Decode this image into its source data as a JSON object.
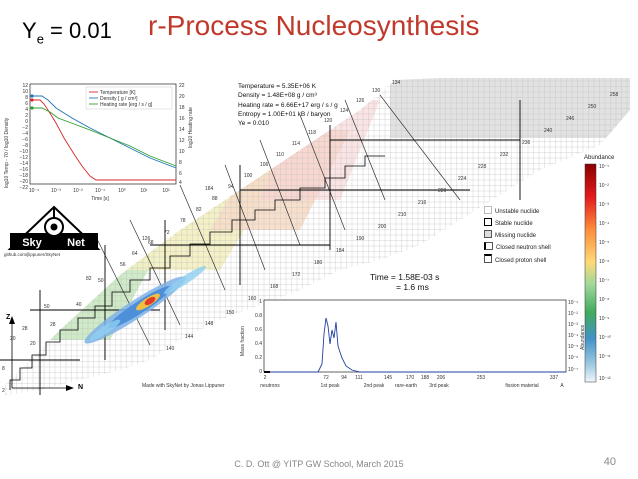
{
  "slide": {
    "ye_label": "Y",
    "ye_sub": "e",
    "ye_value": " = 0.01",
    "title": "r-Process Nucleosynthesis",
    "footer": "C. D. Ott @ YITP GW School, March 2015",
    "page_number": "40"
  },
  "thermo_plot": {
    "legend": [
      "Temperature [K]",
      "Density [ g / cm³]",
      "Heating rate [erg / s / g]"
    ],
    "ylabel_left": "log10 Temp - 70 / log10 Density",
    "ylabel_right": "log10 Heating rate",
    "xlabel": "Time [s]",
    "left_ticks": [
      "12",
      "10",
      "8",
      "6",
      "4",
      "2",
      "0",
      "−2",
      "−4",
      "−6",
      "−8",
      "−10",
      "−12",
      "−14",
      "−16",
      "−18",
      "−20",
      "−22"
    ],
    "right_ticks": [
      "22",
      "20",
      "18",
      "16",
      "14",
      "12",
      "10",
      "8",
      "6",
      "4"
    ],
    "x_ticks": [
      "10⁻⁴",
      "10⁻³",
      "10⁻²",
      "10⁻¹",
      "10⁰",
      "10¹",
      "10²"
    ],
    "colors": {
      "temperature": "#d62728",
      "density": "#1f77b4",
      "heating": "#2ca02c"
    }
  },
  "skynet_logo": {
    "left": "Sky",
    "right": "Net",
    "url": "github.com/jlippuner/SkyNet"
  },
  "info_box": {
    "temperature": "Temperature = 5.35E+06 K",
    "density": "Density = 1.48E+08 g / cm³",
    "heating": "Heating rate = 6.66E+17 erg / s / g",
    "entropy": "Entropy = 1.00E+01 kB / baryon",
    "ye": "Ye = 0.010"
  },
  "nuclide_legend": {
    "unstable": "Unstable nuclide",
    "stable": "Stable nuclide",
    "missing": "Missing nuclide",
    "closed_neutron": "Closed neutron shell",
    "closed_proton": "Closed proton shell"
  },
  "time_readout": {
    "time_s": "Time = 1.58E-03 s",
    "time_ms": "= 1.6 ms"
  },
  "chart_labels": {
    "Z": "Z",
    "N": "N",
    "made_with": "Made with SkyNet by Jonas Lippuner"
  },
  "abundance_bar": {
    "title": "Abundance",
    "ticks": [
      "10⁻¹",
      "10⁻²",
      "10⁻³",
      "10⁻⁴",
      "10⁻⁵",
      "10⁻⁶",
      "10⁻⁷",
      "10⁻⁸",
      "10⁻⁹",
      "10⁻¹⁰",
      "10⁻¹¹",
      "10⁻¹²"
    ],
    "side_label": "Abundance"
  },
  "mass_fraction_plot": {
    "ylabel": "Mass fraction",
    "y_ticks": [
      "1",
      "0.8",
      "0.6",
      "0.4",
      "0.2",
      "0"
    ],
    "right_ticks": [
      "10⁻¹",
      "10⁻²",
      "10⁻³",
      "10⁻⁴",
      "10⁻⁵",
      "10⁻⁶",
      "10⁻⁷"
    ],
    "right_label": "Abundance",
    "x_ticks": [
      "2",
      "72",
      "94",
      "111",
      "145",
      "170",
      "188",
      "206",
      "253",
      "337"
    ],
    "x_labels": [
      "neutrons",
      "1st peak",
      "2nd peak",
      "rare-earth",
      "3rd peak",
      "fission material"
    ],
    "x_axis_letter": "A"
  },
  "magic_numbers": [
    "2",
    "8",
    "20",
    "28",
    "50",
    "82",
    "126",
    "184"
  ],
  "chain_labels": [
    "20",
    "28",
    "40",
    "50",
    "56",
    "64",
    "68",
    "72",
    "78",
    "82",
    "88",
    "94",
    "100",
    "106",
    "110",
    "114",
    "118",
    "120",
    "124",
    "126",
    "130",
    "134",
    "140",
    "144",
    "148",
    "150",
    "160",
    "168",
    "172",
    "180",
    "184",
    "190",
    "200",
    "210",
    "216",
    "220",
    "224",
    "228",
    "232",
    "236",
    "240",
    "246",
    "250",
    "258"
  ]
}
